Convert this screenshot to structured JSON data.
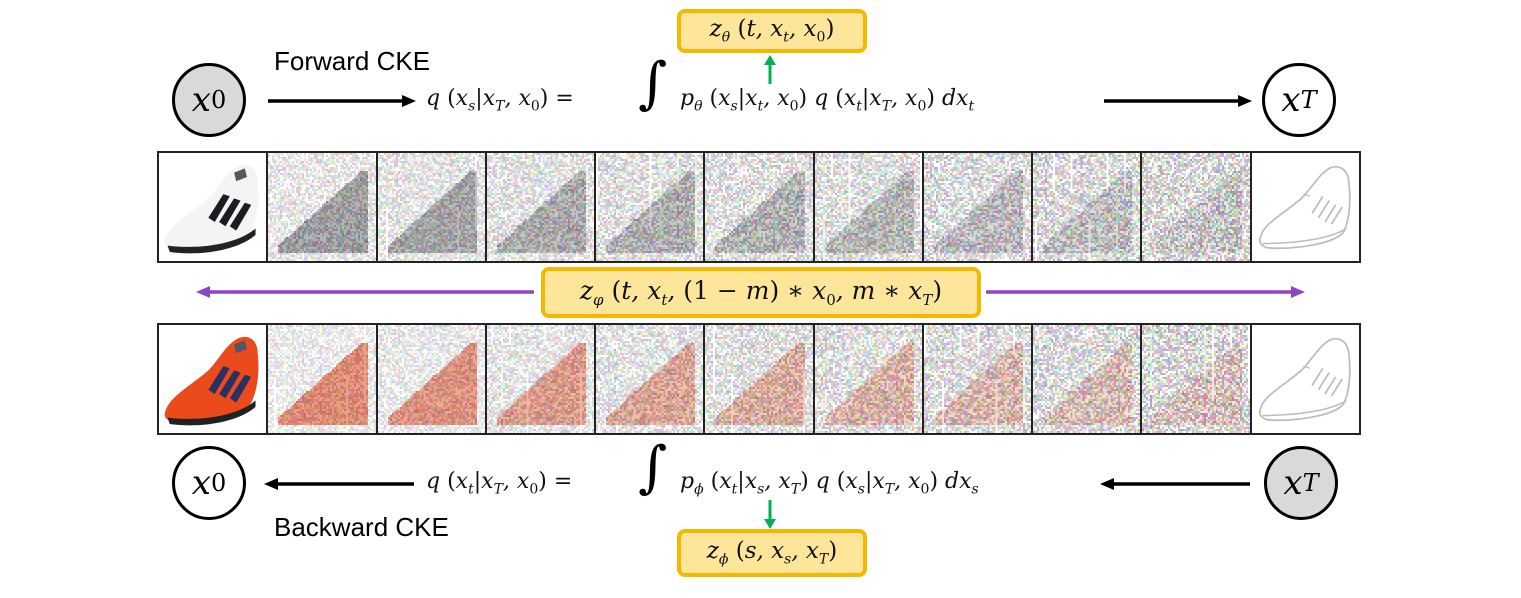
{
  "forward": {
    "label": "Forward CKE",
    "start_node": {
      "var": "x",
      "sub": "0",
      "filled": true
    },
    "end_node": {
      "var": "x",
      "sub": "T",
      "filled": false
    },
    "equation_lhs": "q (x_s | x_T, x_0) =",
    "equation_rhs": "∫ p_θ (x_s | x_t, x_0) q (x_t | x_T, x_0) dx_t",
    "network_box": "z_θ (t, x_t, x_0)",
    "arrow_color": "#000000",
    "network_arrow_color": "#00b050"
  },
  "backward": {
    "label": "Backward CKE",
    "start_node": {
      "var": "x",
      "sub": "T",
      "filled": true
    },
    "end_node": {
      "var": "x",
      "sub": "0",
      "filled": false
    },
    "equation_lhs": "q (x_t | x_T, x_0) =",
    "equation_rhs": "∫ p_φ (x_t | x_s, x_T) q (x_s | x_T, x_0) dx_s",
    "network_box": "z_φ (s, x_s, x_T)",
    "arrow_color": "#000000",
    "network_arrow_color": "#00b050"
  },
  "shared": {
    "network_box": "z_φ (t, x_t, (1 − m) ∗ x_0, m ∗ x_T)",
    "arrow_color": "#8e44c9",
    "box_fill": "#fde69a",
    "box_border": "#f5b800"
  },
  "strips": {
    "top": {
      "description": "white sneaker with black stripes progressively noised toward a sketch",
      "panels": 11,
      "noise_levels": [
        0,
        0.55,
        0.6,
        0.65,
        0.7,
        0.72,
        0.75,
        0.78,
        0.82,
        0.86,
        0
      ],
      "first": "white-sneaker-photo",
      "last": "sneaker-edge-sketch"
    },
    "bottom": {
      "description": "orange sneaker with navy stripes progressively noised toward a sketch",
      "panels": 11,
      "noise_levels": [
        0,
        0.45,
        0.5,
        0.58,
        0.64,
        0.7,
        0.74,
        0.78,
        0.82,
        0.86,
        0
      ],
      "first": "orange-sneaker-photo",
      "last": "sneaker-edge-sketch"
    }
  }
}
